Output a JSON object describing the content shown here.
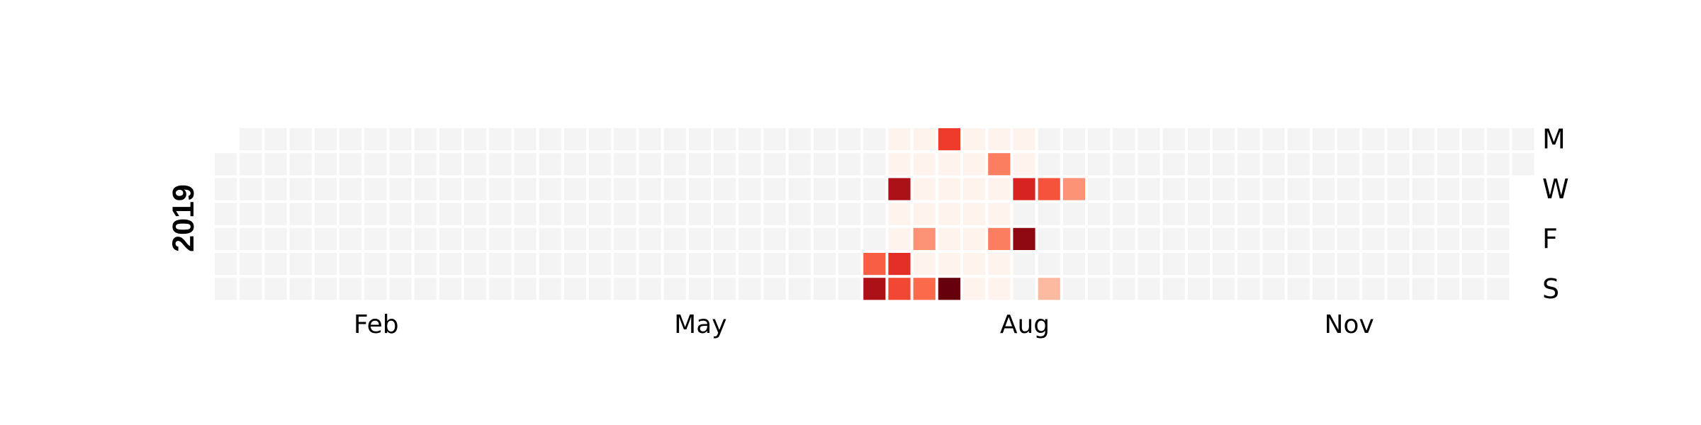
{
  "chart_data": {
    "type": "heatmap",
    "subtype": "calendar",
    "year": "2019",
    "first_day_of_year": "Tue",
    "week_start": "Mon",
    "colormap": "Reds",
    "grid": false,
    "month_labels": [
      {
        "label": "Feb",
        "month": 2
      },
      {
        "label": "May",
        "month": 5
      },
      {
        "label": "Aug",
        "month": 8
      },
      {
        "label": "Nov",
        "month": 11
      }
    ],
    "day_labels": [
      "M",
      "",
      "W",
      "",
      "F",
      "",
      "S"
    ],
    "empty_color": "#f4f4f4",
    "faint_color": "#fff3ee",
    "value_scale": [
      0,
      1
    ],
    "active_range": [
      "2019-07-06",
      "2019-08-13"
    ],
    "values": [
      {
        "date": "2019-07-06",
        "value": 0.5
      },
      {
        "date": "2019-07-07",
        "value": 0.9
      },
      {
        "date": "2019-07-10",
        "value": 0.9
      },
      {
        "date": "2019-07-13",
        "value": 0.7
      },
      {
        "date": "2019-07-14",
        "value": 0.6
      },
      {
        "date": "2019-07-19",
        "value": 0.35
      },
      {
        "date": "2019-07-21",
        "value": 0.45
      },
      {
        "date": "2019-07-22",
        "value": 0.65
      },
      {
        "date": "2019-07-28",
        "value": 1.0
      },
      {
        "date": "2019-08-06",
        "value": 0.4
      },
      {
        "date": "2019-08-09",
        "value": 0.4
      },
      {
        "date": "2019-08-14",
        "value": 0.75
      },
      {
        "date": "2019-08-16",
        "value": 0.95
      },
      {
        "date": "2019-08-21",
        "value": 0.55
      },
      {
        "date": "2019-08-25",
        "value": 0.25
      },
      {
        "date": "2019-08-28",
        "value": 0.35
      }
    ]
  }
}
